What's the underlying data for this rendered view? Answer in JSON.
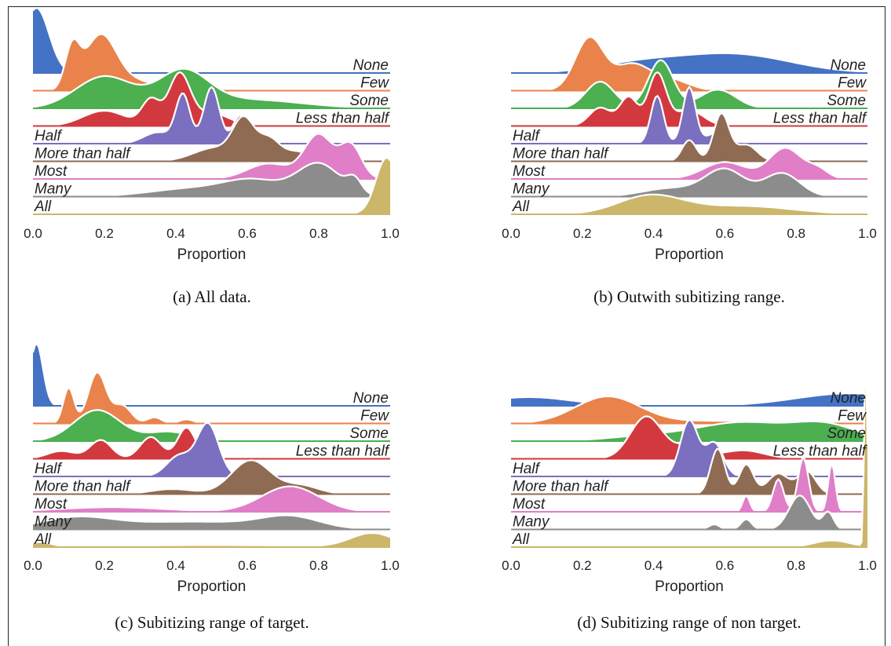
{
  "colors": {
    "None": "#4472c4",
    "Few": "#e9834b",
    "Some": "#4caf50",
    "Less than half": "#d2393f",
    "Half": "#7b6fbf",
    "More than half": "#8e6b52",
    "Most": "#e07ec7",
    "Many": "#8c8c8c",
    "All": "#ccb66a"
  },
  "chart_data": [
    {
      "type": "ridgeline",
      "caption": "(a) All data.",
      "xlabel": "Proportion",
      "xlim": [
        0,
        1
      ],
      "xticks": [
        "0.0",
        "0.2",
        "0.4",
        "0.6",
        "0.8",
        "1.0"
      ],
      "series": [
        {
          "name": "None",
          "peaks": [
            [
              0.01,
              0.035,
              1.0
            ]
          ]
        },
        {
          "name": "Few",
          "peaks": [
            [
              0.11,
              0.02,
              0.7
            ],
            [
              0.19,
              0.045,
              1.0
            ],
            [
              0.3,
              0.05,
              0.15
            ]
          ]
        },
        {
          "name": "Some",
          "peaks": [
            [
              0.2,
              0.08,
              0.55
            ],
            [
              0.42,
              0.07,
              0.6
            ],
            [
              0.6,
              0.15,
              0.15
            ]
          ]
        },
        {
          "name": "Less than half",
          "peaks": [
            [
              0.2,
              0.06,
              0.3
            ],
            [
              0.33,
              0.025,
              0.5
            ],
            [
              0.41,
              0.03,
              1.0
            ],
            [
              0.5,
              0.05,
              0.25
            ]
          ]
        },
        {
          "name": "Half",
          "peaks": [
            [
              0.42,
              0.02,
              0.85
            ],
            [
              0.5,
              0.022,
              1.0
            ],
            [
              0.58,
              0.02,
              0.5
            ],
            [
              0.35,
              0.04,
              0.2
            ]
          ]
        },
        {
          "name": "More than half",
          "peaks": [
            [
              0.51,
              0.06,
              0.35
            ],
            [
              0.59,
              0.03,
              1.0
            ],
            [
              0.66,
              0.03,
              0.55
            ],
            [
              0.74,
              0.04,
              0.25
            ]
          ]
        },
        {
          "name": "Most",
          "peaks": [
            [
              0.66,
              0.06,
              0.35
            ],
            [
              0.8,
              0.04,
              1.0
            ],
            [
              0.89,
              0.03,
              0.75
            ]
          ]
        },
        {
          "name": "Many",
          "peaks": [
            [
              0.45,
              0.12,
              0.25
            ],
            [
              0.62,
              0.08,
              0.45
            ],
            [
              0.8,
              0.06,
              1.0
            ],
            [
              0.9,
              0.02,
              0.4
            ]
          ]
        },
        {
          "name": "All",
          "peaks": [
            [
              0.99,
              0.03,
              1.0
            ],
            [
              0.5,
              0.3,
              0.03
            ]
          ]
        }
      ]
    },
    {
      "type": "ridgeline",
      "caption": "(b) Outwith subitizing range.",
      "xlabel": "Proportion",
      "xlim": [
        0,
        1
      ],
      "xticks": [
        "0.0",
        "0.2",
        "0.4",
        "0.6",
        "0.8",
        "1.0"
      ],
      "series": [
        {
          "name": "None",
          "peaks": [
            [
              0.35,
              0.12,
              0.2
            ],
            [
              0.62,
              0.16,
              0.45
            ]
          ]
        },
        {
          "name": "Few",
          "peaks": [
            [
              0.22,
              0.04,
              1.0
            ],
            [
              0.34,
              0.05,
              0.5
            ],
            [
              0.45,
              0.05,
              0.2
            ]
          ]
        },
        {
          "name": "Some",
          "peaks": [
            [
              0.25,
              0.04,
              0.5
            ],
            [
              0.42,
              0.035,
              0.9
            ],
            [
              0.58,
              0.05,
              0.35
            ]
          ]
        },
        {
          "name": "Less than half",
          "peaks": [
            [
              0.25,
              0.03,
              0.35
            ],
            [
              0.33,
              0.025,
              0.55
            ],
            [
              0.41,
              0.025,
              1.0
            ],
            [
              0.5,
              0.04,
              0.3
            ]
          ]
        },
        {
          "name": "Half",
          "peaks": [
            [
              0.41,
              0.018,
              0.85
            ],
            [
              0.5,
              0.018,
              1.0
            ],
            [
              0.58,
              0.03,
              0.2
            ]
          ]
        },
        {
          "name": "More than half",
          "peaks": [
            [
              0.5,
              0.02,
              0.45
            ],
            [
              0.59,
              0.022,
              1.0
            ],
            [
              0.66,
              0.03,
              0.35
            ]
          ]
        },
        {
          "name": "Most",
          "peaks": [
            [
              0.6,
              0.06,
              0.55
            ],
            [
              0.77,
              0.045,
              1.0
            ],
            [
              0.86,
              0.03,
              0.3
            ]
          ]
        },
        {
          "name": "Many",
          "peaks": [
            [
              0.45,
              0.08,
              0.25
            ],
            [
              0.6,
              0.055,
              0.8
            ],
            [
              0.76,
              0.05,
              0.7
            ]
          ]
        },
        {
          "name": "All",
          "peaks": [
            [
              0.39,
              0.09,
              1.0
            ],
            [
              0.65,
              0.14,
              0.45
            ]
          ]
        }
      ]
    },
    {
      "type": "ridgeline",
      "caption": "(c) Subitizing range of target.",
      "xlabel": "Proportion",
      "xlim": [
        0,
        1
      ],
      "xticks": [
        "0.0",
        "0.2",
        "0.4",
        "0.6",
        "0.8",
        "1.0"
      ],
      "series": [
        {
          "name": "None",
          "peaks": [
            [
              0.01,
              0.018,
              1.0
            ]
          ]
        },
        {
          "name": "Few",
          "peaks": [
            [
              0.1,
              0.015,
              0.7
            ],
            [
              0.18,
              0.025,
              1.0
            ],
            [
              0.25,
              0.025,
              0.35
            ],
            [
              0.34,
              0.02,
              0.12
            ],
            [
              0.43,
              0.02,
              0.08
            ]
          ]
        },
        {
          "name": "Some",
          "peaks": [
            [
              0.18,
              0.065,
              1.0
            ],
            [
              0.38,
              0.06,
              0.3
            ]
          ]
        },
        {
          "name": "Less than half",
          "peaks": [
            [
              0.08,
              0.04,
              0.25
            ],
            [
              0.19,
              0.03,
              0.6
            ],
            [
              0.33,
              0.03,
              0.7
            ],
            [
              0.43,
              0.025,
              1.0
            ]
          ]
        },
        {
          "name": "Half",
          "peaks": [
            [
              0.41,
              0.035,
              0.4
            ],
            [
              0.49,
              0.03,
              1.0
            ]
          ]
        },
        {
          "name": "More than half",
          "peaks": [
            [
              0.39,
              0.06,
              0.15
            ],
            [
              0.61,
              0.055,
              1.0
            ],
            [
              0.75,
              0.05,
              0.25
            ]
          ]
        },
        {
          "name": "Most",
          "peaks": [
            [
              0.22,
              0.15,
              0.18
            ],
            [
              0.72,
              0.08,
              1.0
            ]
          ]
        },
        {
          "name": "Many",
          "peaks": [
            [
              0.12,
              0.1,
              0.7
            ],
            [
              0.45,
              0.2,
              0.5
            ],
            [
              0.72,
              0.08,
              0.7
            ]
          ]
        },
        {
          "name": "All",
          "peaks": [
            [
              0.02,
              0.03,
              0.35
            ],
            [
              0.5,
              0.25,
              0.15
            ],
            [
              0.95,
              0.06,
              1.0
            ]
          ]
        }
      ]
    },
    {
      "type": "ridgeline",
      "caption": "(d) Subitizing range of non target.",
      "xlabel": "Proportion",
      "xlim": [
        0,
        1
      ],
      "xticks": [
        "0.0",
        "0.2",
        "0.4",
        "0.6",
        "0.8",
        "1.0"
      ],
      "series": [
        {
          "name": "None",
          "peaks": [
            [
              0.05,
              0.12,
              0.35
            ],
            [
              0.95,
              0.15,
              0.5
            ]
          ]
        },
        {
          "name": "Few",
          "peaks": [
            [
              0.27,
              0.09,
              1.0
            ],
            [
              0.6,
              0.2,
              0.1
            ]
          ]
        },
        {
          "name": "Some",
          "peaks": [
            [
              0.4,
              0.12,
              0.15
            ],
            [
              0.65,
              0.12,
              0.5
            ],
            [
              0.88,
              0.09,
              0.45
            ]
          ]
        },
        {
          "name": "Less than half",
          "peaks": [
            [
              0.38,
              0.045,
              1.0
            ],
            [
              0.5,
              0.04,
              0.3
            ],
            [
              0.65,
              0.06,
              0.2
            ]
          ]
        },
        {
          "name": "Half",
          "peaks": [
            [
              0.5,
              0.025,
              1.0
            ],
            [
              0.57,
              0.025,
              0.6
            ]
          ]
        },
        {
          "name": "More than half",
          "peaks": [
            [
              0.58,
              0.02,
              1.0
            ],
            [
              0.66,
              0.02,
              0.65
            ],
            [
              0.75,
              0.03,
              0.45
            ],
            [
              0.83,
              0.025,
              0.5
            ]
          ]
        },
        {
          "name": "Most",
          "peaks": [
            [
              0.66,
              0.01,
              0.3
            ],
            [
              0.75,
              0.015,
              0.6
            ],
            [
              0.82,
              0.015,
              1.0
            ],
            [
              0.9,
              0.01,
              0.9
            ]
          ]
        },
        {
          "name": "Many",
          "peaks": [
            [
              0.57,
              0.015,
              0.15
            ],
            [
              0.66,
              0.015,
              0.3
            ],
            [
              0.81,
              0.03,
              1.0
            ],
            [
              0.89,
              0.015,
              0.5
            ]
          ]
        },
        {
          "name": "All",
          "peaks": [
            [
              0.995,
              0.004,
              1.0
            ],
            [
              0.9,
              0.05,
              0.03
            ]
          ]
        }
      ]
    }
  ]
}
